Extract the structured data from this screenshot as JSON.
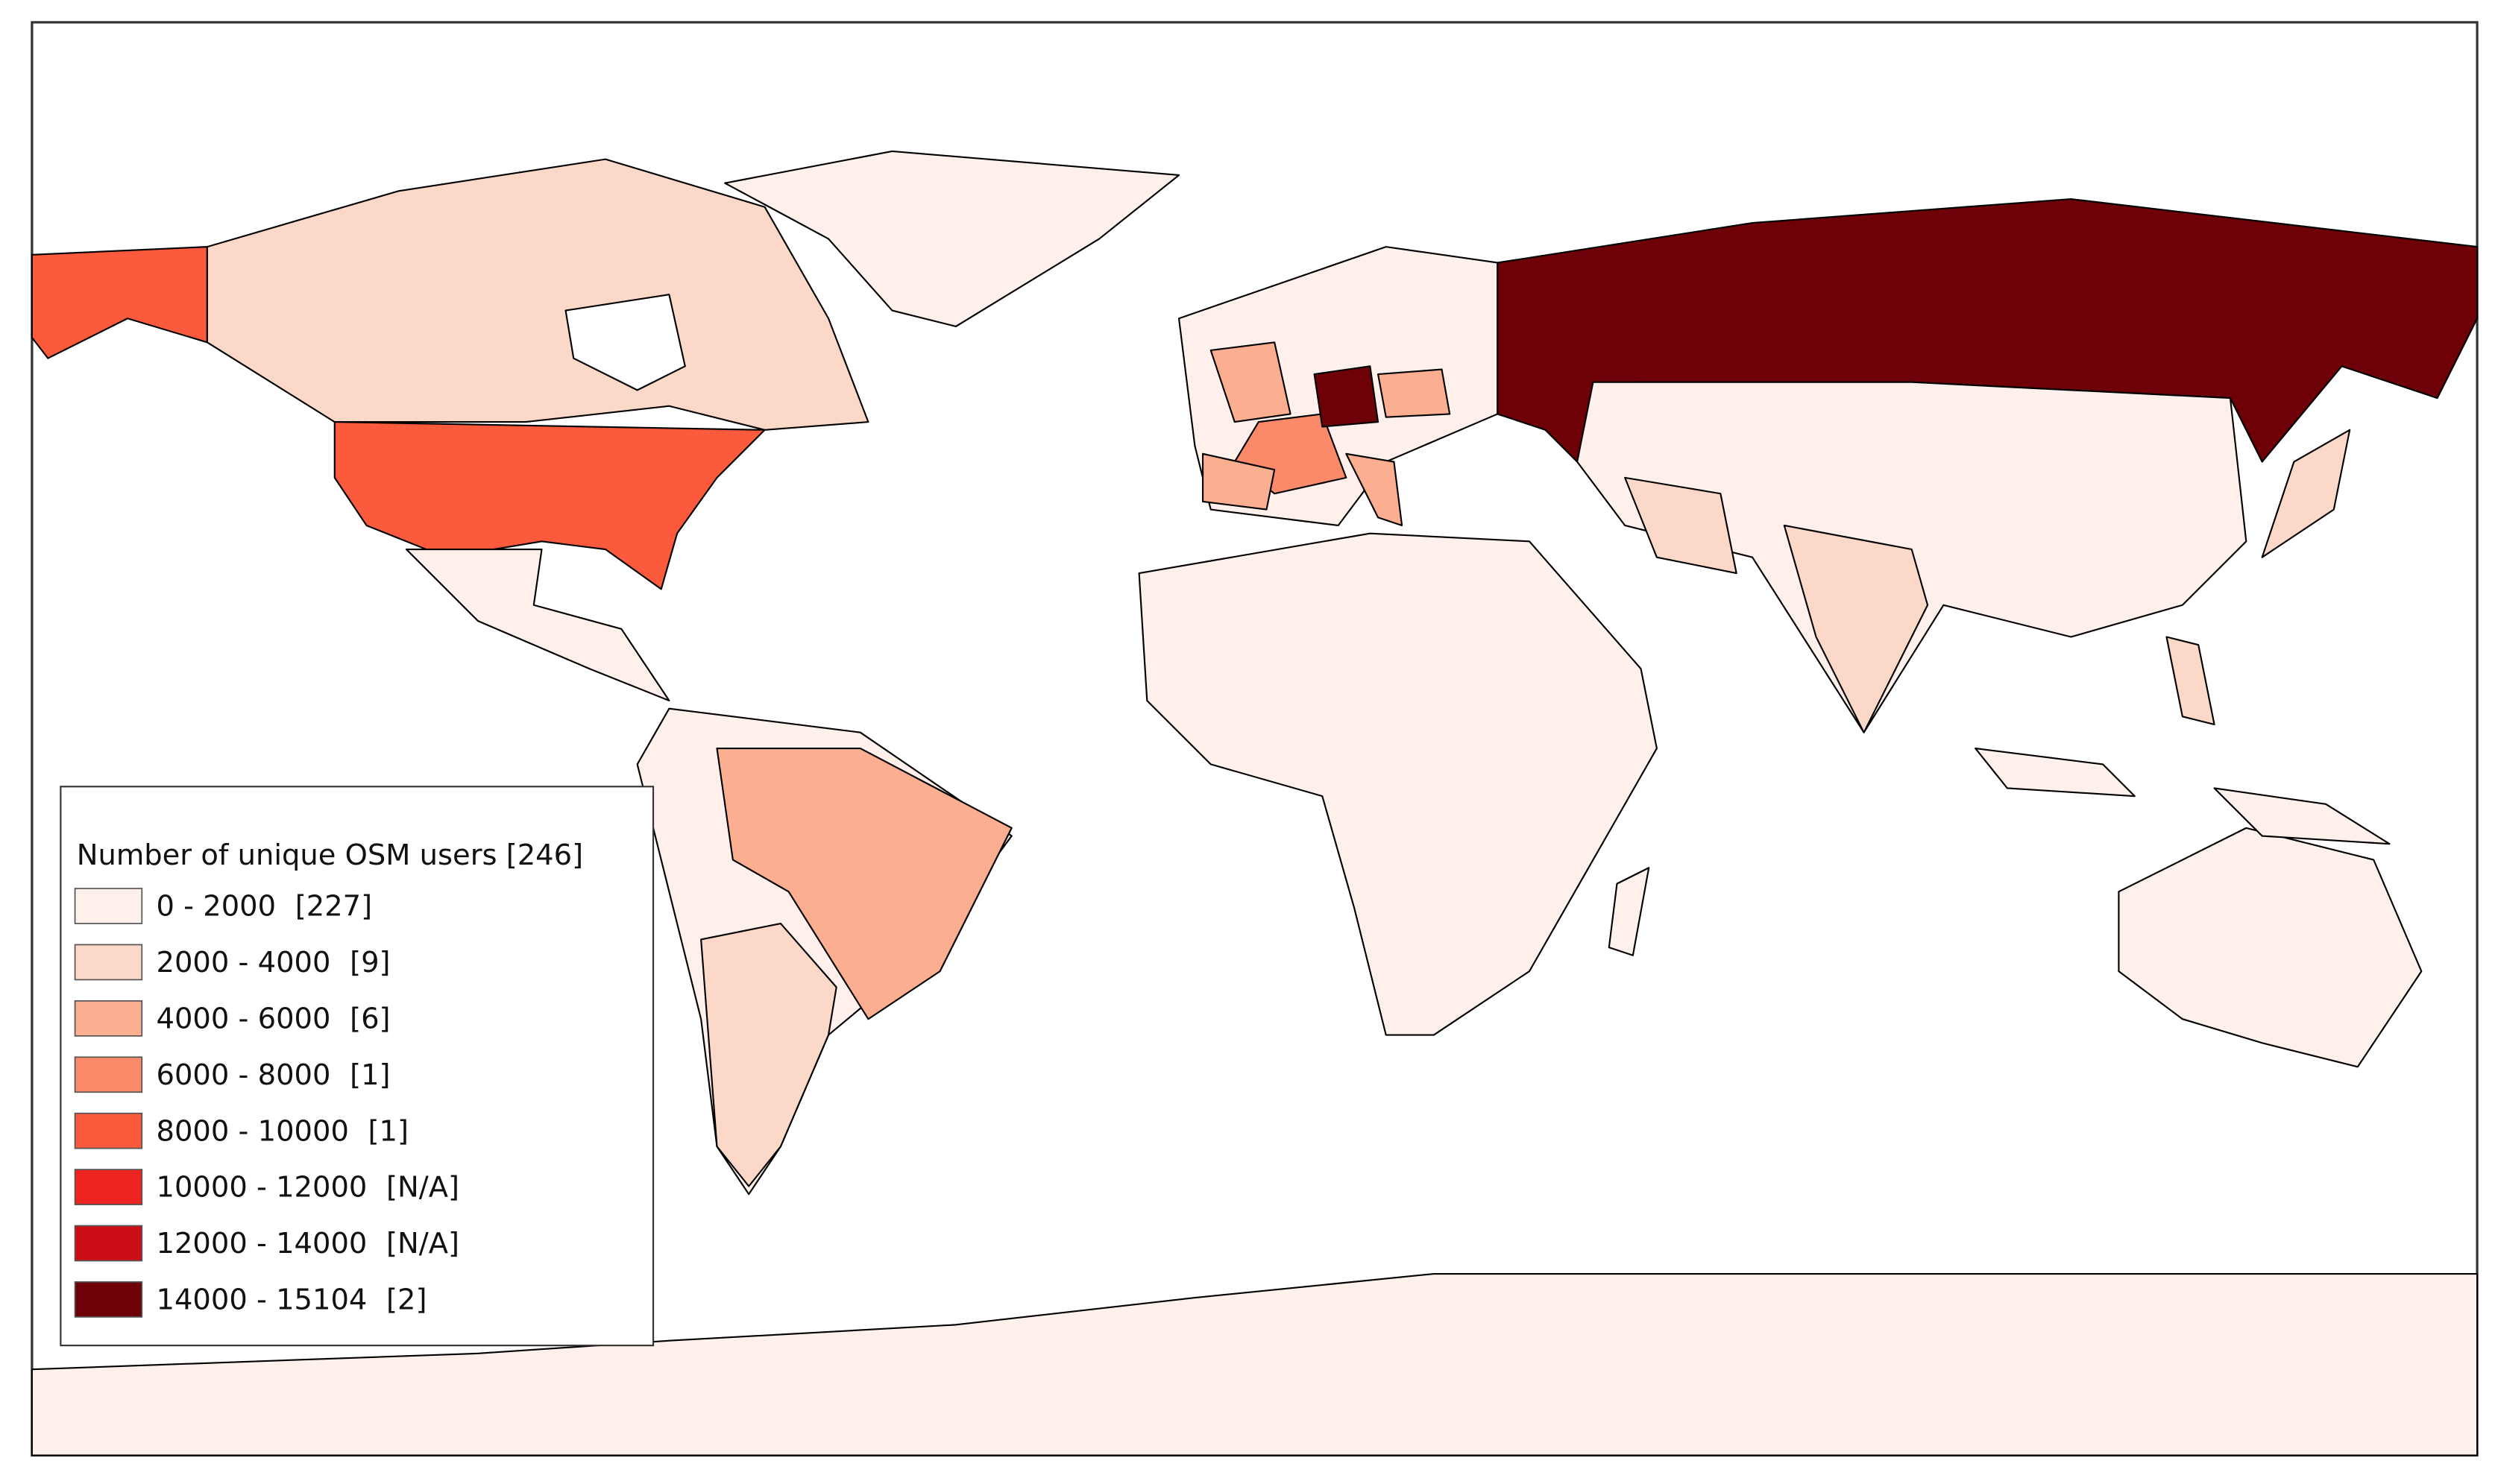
{
  "legend": {
    "title": "Number of unique OSM users [246]",
    "items": [
      {
        "range": "0 - 2000",
        "count": "[227]",
        "color": "#fff0eb"
      },
      {
        "range": "2000 - 4000",
        "count": "[9]",
        "color": "#fcd8c8"
      },
      {
        "range": "4000 - 6000",
        "count": "[6]",
        "color": "#fcae91"
      },
      {
        "range": "6000 - 8000",
        "count": "[1]",
        "color": "#fb8a6a"
      },
      {
        "range": "8000 - 10000",
        "count": "[1]",
        "color": "#fb5a3c"
      },
      {
        "range": "10000 - 12000",
        "count": "[N/A]",
        "color": "#ef2420"
      },
      {
        "range": "12000 - 14000",
        "count": "[N/A]",
        "color": "#cb0d16"
      },
      {
        "range": "14000 - 15104",
        "count": "[2]",
        "color": "#6e0008"
      }
    ]
  }
}
